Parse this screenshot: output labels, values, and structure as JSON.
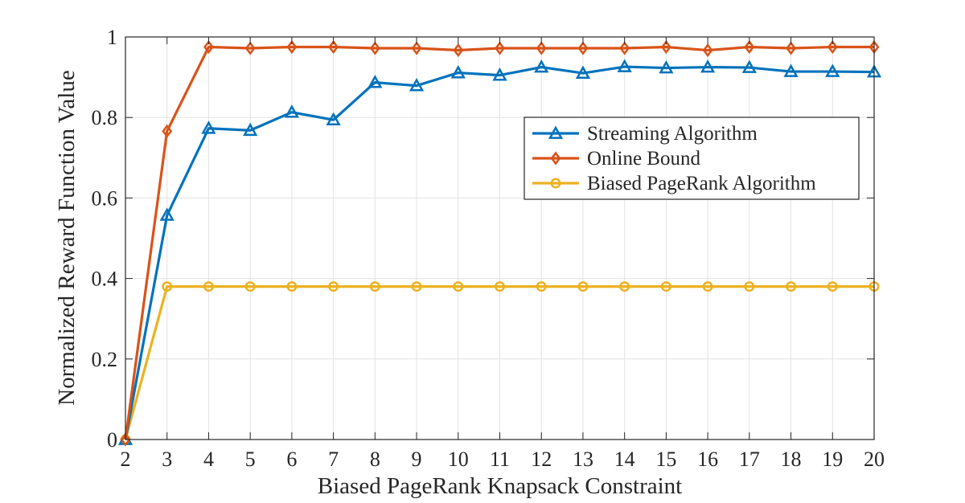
{
  "chart_data": {
    "type": "line",
    "title": "",
    "xlabel": "Biased PageRank Knapsack Constraint",
    "ylabel": "Normalized Reward Function Value",
    "x": [
      2,
      3,
      4,
      5,
      6,
      7,
      8,
      9,
      10,
      11,
      12,
      13,
      14,
      15,
      16,
      17,
      18,
      19,
      20
    ],
    "xlim": [
      2,
      20
    ],
    "ylim": [
      0,
      1
    ],
    "xticks": [
      "2",
      "3",
      "4",
      "5",
      "6",
      "7",
      "8",
      "9",
      "10",
      "11",
      "12",
      "13",
      "14",
      "15",
      "16",
      "17",
      "18",
      "19",
      "20"
    ],
    "yticks": [
      {
        "value": 0,
        "label": "0"
      },
      {
        "value": 0.2,
        "label": "0.2"
      },
      {
        "value": 0.4,
        "label": "0.4"
      },
      {
        "value": 0.6,
        "label": "0.6"
      },
      {
        "value": 0.8,
        "label": "0.8"
      },
      {
        "value": 1,
        "label": "1"
      }
    ],
    "grid": true,
    "legend_position": "right",
    "series": [
      {
        "name": "Streaming Algorithm",
        "color": "#0072BD",
        "marker": "triangle",
        "values": [
          0,
          0.557,
          0.773,
          0.768,
          0.813,
          0.794,
          0.887,
          0.879,
          0.911,
          0.905,
          0.925,
          0.91,
          0.926,
          0.923,
          0.925,
          0.924,
          0.914,
          0.914,
          0.913
        ]
      },
      {
        "name": "Online Bound",
        "color": "#D95319",
        "marker": "diamond",
        "values": [
          0,
          0.766,
          0.975,
          0.972,
          0.975,
          0.975,
          0.972,
          0.972,
          0.967,
          0.972,
          0.972,
          0.972,
          0.972,
          0.975,
          0.967,
          0.975,
          0.972,
          0.975,
          0.975
        ]
      },
      {
        "name": "Biased PageRank Algorithm",
        "color": "#EDB120",
        "marker": "circle",
        "values": [
          0,
          0.38,
          0.38,
          0.38,
          0.38,
          0.38,
          0.38,
          0.38,
          0.38,
          0.38,
          0.38,
          0.38,
          0.38,
          0.38,
          0.38,
          0.38,
          0.38,
          0.38,
          0.38
        ]
      }
    ]
  }
}
